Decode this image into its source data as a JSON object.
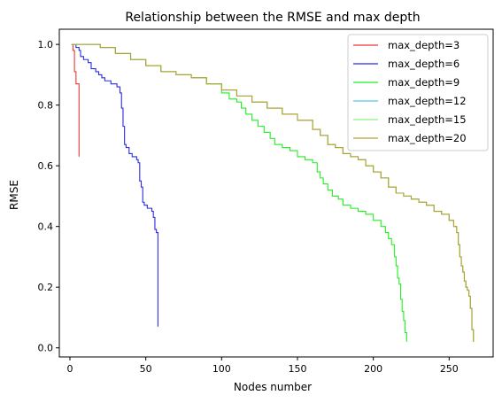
{
  "chart_data": {
    "type": "line",
    "title": "Relationship between the RMSE and max depth",
    "xlabel": "Nodes number",
    "ylabel": "RMSE",
    "xlim": [
      -7,
      279
    ],
    "ylim": [
      -0.03,
      1.05
    ],
    "xticks": [
      0,
      50,
      100,
      150,
      200,
      250
    ],
    "yticks": [
      0.0,
      0.2,
      0.4,
      0.6,
      0.8,
      1.0
    ],
    "grid": false,
    "legend_position": "top-right",
    "series": [
      {
        "name": "max_depth=3",
        "color": "#e8373a",
        "step": true,
        "x": [
          1,
          2,
          3,
          4,
          5,
          6
        ],
        "y": [
          1.0,
          0.98,
          0.91,
          0.87,
          0.87,
          0.63
        ]
      },
      {
        "name": "max_depth=6",
        "color": "#2b2be0",
        "step": true,
        "x": [
          1,
          4,
          6,
          7,
          9,
          12,
          14,
          17,
          19,
          21,
          23,
          25,
          27,
          29,
          31,
          33,
          34,
          35,
          36,
          37,
          39,
          41,
          43,
          44,
          45,
          46,
          47,
          48,
          49,
          51,
          53,
          54,
          55,
          56,
          57,
          58
        ],
        "y": [
          1.0,
          0.99,
          0.98,
          0.96,
          0.95,
          0.94,
          0.92,
          0.91,
          0.9,
          0.89,
          0.88,
          0.88,
          0.87,
          0.87,
          0.86,
          0.84,
          0.79,
          0.73,
          0.67,
          0.66,
          0.64,
          0.63,
          0.63,
          0.62,
          0.61,
          0.55,
          0.53,
          0.48,
          0.47,
          0.46,
          0.46,
          0.45,
          0.43,
          0.39,
          0.38,
          0.07
        ]
      },
      {
        "name": "max_depth=9",
        "color": "#22ee22",
        "step": true,
        "x": [
          1,
          20,
          30,
          40,
          50,
          60,
          70,
          80,
          90,
          100,
          105,
          110,
          113,
          116,
          120,
          124,
          128,
          132,
          135,
          140,
          145,
          150,
          155,
          160,
          163,
          165,
          167,
          170,
          173,
          177,
          180,
          185,
          190,
          195,
          200,
          205,
          208,
          210,
          212,
          214,
          215,
          216,
          217,
          218,
          219,
          220,
          221,
          222
        ],
        "y": [
          1.0,
          0.99,
          0.97,
          0.95,
          0.93,
          0.91,
          0.9,
          0.89,
          0.87,
          0.84,
          0.82,
          0.81,
          0.79,
          0.77,
          0.75,
          0.73,
          0.71,
          0.69,
          0.67,
          0.66,
          0.65,
          0.63,
          0.62,
          0.61,
          0.58,
          0.56,
          0.54,
          0.52,
          0.5,
          0.49,
          0.47,
          0.46,
          0.45,
          0.44,
          0.42,
          0.4,
          0.38,
          0.36,
          0.34,
          0.3,
          0.27,
          0.23,
          0.21,
          0.16,
          0.12,
          0.09,
          0.05,
          0.02
        ]
      },
      {
        "name": "max_depth=12",
        "color": "#55c8e8",
        "step": true,
        "x": [
          1,
          20,
          30,
          40,
          50,
          60,
          70,
          80,
          90,
          100,
          110,
          120,
          130,
          140,
          150,
          160,
          165,
          170,
          175,
          180,
          185,
          190,
          195,
          200,
          205,
          210,
          215,
          220,
          225,
          230,
          235,
          240,
          245,
          250,
          253,
          255,
          256,
          257,
          258,
          259,
          260,
          261,
          262,
          263,
          264,
          265,
          266
        ],
        "y": [
          1.0,
          0.99,
          0.97,
          0.95,
          0.93,
          0.91,
          0.9,
          0.89,
          0.87,
          0.85,
          0.83,
          0.81,
          0.79,
          0.77,
          0.75,
          0.72,
          0.7,
          0.67,
          0.66,
          0.64,
          0.63,
          0.62,
          0.6,
          0.58,
          0.56,
          0.53,
          0.51,
          0.5,
          0.49,
          0.48,
          0.47,
          0.45,
          0.44,
          0.42,
          0.4,
          0.38,
          0.34,
          0.3,
          0.27,
          0.25,
          0.22,
          0.2,
          0.19,
          0.17,
          0.13,
          0.06,
          0.02
        ]
      },
      {
        "name": "max_depth=15",
        "color": "#88f088",
        "step": true,
        "x": [
          1,
          20,
          30,
          40,
          50,
          60,
          70,
          80,
          90,
          100,
          110,
          120,
          130,
          140,
          150,
          160,
          165,
          170,
          175,
          180,
          185,
          190,
          195,
          200,
          205,
          210,
          215,
          220,
          225,
          230,
          235,
          240,
          245,
          250,
          253,
          255,
          256,
          257,
          258,
          259,
          260,
          261,
          262,
          263,
          264,
          265,
          266
        ],
        "y": [
          1.0,
          0.99,
          0.97,
          0.95,
          0.93,
          0.91,
          0.9,
          0.89,
          0.87,
          0.85,
          0.83,
          0.81,
          0.79,
          0.77,
          0.75,
          0.72,
          0.7,
          0.67,
          0.66,
          0.64,
          0.63,
          0.62,
          0.6,
          0.58,
          0.56,
          0.53,
          0.51,
          0.5,
          0.49,
          0.48,
          0.47,
          0.45,
          0.44,
          0.42,
          0.4,
          0.38,
          0.34,
          0.3,
          0.27,
          0.25,
          0.22,
          0.2,
          0.19,
          0.17,
          0.13,
          0.06,
          0.02
        ]
      },
      {
        "name": "max_depth=20",
        "color": "#b8a030",
        "step": true,
        "x": [
          1,
          20,
          30,
          40,
          50,
          60,
          70,
          80,
          90,
          100,
          110,
          120,
          130,
          140,
          150,
          160,
          165,
          170,
          175,
          180,
          185,
          190,
          195,
          200,
          205,
          210,
          215,
          220,
          225,
          230,
          235,
          240,
          245,
          250,
          253,
          255,
          256,
          257,
          258,
          259,
          260,
          261,
          262,
          263,
          264,
          265,
          266
        ],
        "y": [
          1.0,
          0.99,
          0.97,
          0.95,
          0.93,
          0.91,
          0.9,
          0.89,
          0.87,
          0.85,
          0.83,
          0.81,
          0.79,
          0.77,
          0.75,
          0.72,
          0.7,
          0.67,
          0.66,
          0.64,
          0.63,
          0.62,
          0.6,
          0.58,
          0.56,
          0.53,
          0.51,
          0.5,
          0.49,
          0.48,
          0.47,
          0.45,
          0.44,
          0.42,
          0.4,
          0.38,
          0.34,
          0.3,
          0.27,
          0.25,
          0.22,
          0.2,
          0.19,
          0.17,
          0.13,
          0.06,
          0.02
        ]
      }
    ]
  }
}
